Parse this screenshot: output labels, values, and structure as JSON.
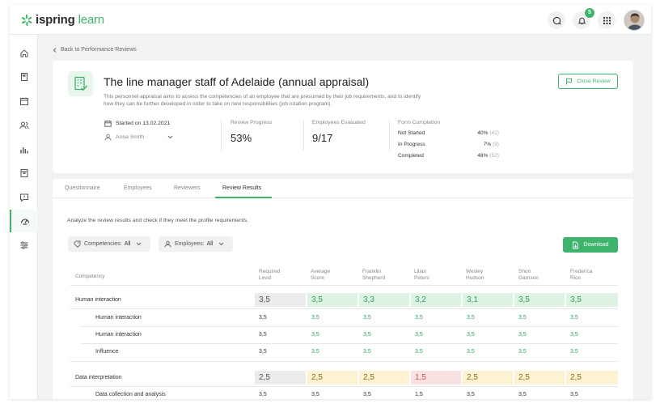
{
  "app": {
    "logo_brand": "ispring",
    "logo_product": "learn",
    "notifications_count": "5"
  },
  "nav": {
    "back_label": "Back to Performance Reviews"
  },
  "review": {
    "title": "The line manager staff of Adelaide (annual appraisal)",
    "description": "This personnel appraisal aims to assess the competencies of an employee that are presumed by their job requirements, and to identify how they can be further developed in order to take on new responsibilities (job rotation program).",
    "close_label": "Close Review",
    "started": "Started on 13.02.2021",
    "manager": "Anna Smith",
    "progress_label": "Review Progress",
    "progress_value": "53%",
    "evaluated_label": "Employees Evaluated",
    "evaluated_value": "9/17",
    "form_label": "Form Completion",
    "form_rows": [
      {
        "label": "Not Started",
        "pct": "40%",
        "count": "(41)"
      },
      {
        "label": "In Progress",
        "pct": "7%",
        "count": "(9)"
      },
      {
        "label": "Completed",
        "pct": "48%",
        "count": "(52)"
      }
    ]
  },
  "tabs": [
    "Questionnaire",
    "Employees",
    "Reviewers",
    "Review Results"
  ],
  "results": {
    "intro": "Analyze the review results and check if they meet the profile requirements.",
    "filter_competencies_label": "Competencies:",
    "filter_competencies_value": "All",
    "filter_employees_label": "Employees:",
    "filter_employees_value": "All",
    "download_label": "Download",
    "columns": [
      {
        "l1": "Competency",
        "l2": ""
      },
      {
        "l1": "Required",
        "l2": "Level"
      },
      {
        "l1": "Average",
        "l2": "Score"
      },
      {
        "l1": "Franklin",
        "l2": "Shepherd"
      },
      {
        "l1": "Lilian",
        "l2": "Peters"
      },
      {
        "l1": "Wesley",
        "l2": "Hudson"
      },
      {
        "l1": "Shon",
        "l2": "Garrison"
      },
      {
        "l1": "Frederica",
        "l2": "Rice"
      }
    ],
    "groups": [
      {
        "name": "Human interaction",
        "values": [
          "3,5",
          "3,5",
          "3,3",
          "3,2",
          "3,1",
          "3,5",
          "3,5"
        ],
        "styles": [
          "gray",
          "green",
          "green",
          "green",
          "green",
          "green",
          "green"
        ],
        "children": [
          {
            "name": "Human interaction",
            "values": [
              "3,5",
              "3,5",
              "3,5",
              "3,5",
              "3,5",
              "3,5",
              "3,5"
            ]
          },
          {
            "name": "Human interaction",
            "values": [
              "3,5",
              "3,5",
              "3,5",
              "3,5",
              "3,5",
              "3,5",
              "3,5"
            ]
          },
          {
            "name": "Influence",
            "values": [
              "3,5",
              "3,5",
              "3,5",
              "3,5",
              "3,5",
              "3,5",
              "3,5"
            ]
          }
        ]
      },
      {
        "name": "Data interpretation",
        "values": [
          "2,5",
          "2,5",
          "2,5",
          "1,5",
          "2,5",
          "2,5",
          "2,5"
        ],
        "styles": [
          "gray",
          "yellow",
          "yellow",
          "red",
          "yellow",
          "yellow",
          "yellow"
        ],
        "children": [
          {
            "name": "Data collection and analysis",
            "values": [
              "3,5",
              "3,5",
              "3,5",
              "1,5",
              "3,5",
              "3,5",
              "3,5"
            ]
          }
        ]
      }
    ]
  }
}
